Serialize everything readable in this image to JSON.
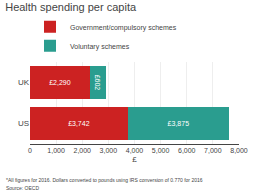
{
  "chart_data": {
    "type": "bar",
    "orientation": "horizontal",
    "stacked": true,
    "title": "Health spending per capita",
    "categories": [
      "UK",
      "US"
    ],
    "series": [
      {
        "name": "Government/compulsory schemes",
        "color": "#cc2222",
        "values": [
          2290,
          3742
        ],
        "value_labels": [
          "£2,290",
          "£3,742"
        ]
      },
      {
        "name": "Voluntary schemes",
        "color": "#2a9d8f",
        "values": [
          602,
          3875
        ],
        "value_labels": [
          "£602",
          "£3,875"
        ]
      }
    ],
    "data_labels": true,
    "xlabel": "£",
    "xlim": [
      0,
      8000
    ],
    "xticks": [
      0,
      {
        "value": 1000,
        "label": "1,000"
      },
      {
        "value": 2000,
        "label": "2,000"
      },
      {
        "value": 3000,
        "label": "3,000"
      },
      {
        "value": 4000,
        "label": "4,000"
      },
      {
        "value": 5000,
        "label": "5,000"
      },
      {
        "value": 6000,
        "label": "6,000"
      },
      {
        "value": 7000,
        "label": "7,000"
      },
      {
        "value": 8000,
        "label": "8,000"
      }
    ],
    "grid": true,
    "legend": "top",
    "annotations": [
      "*All figures for 2016. Dollars converted to pounds using IRS conversion of 0.770 for 2016",
      "Source: OECD"
    ]
  }
}
